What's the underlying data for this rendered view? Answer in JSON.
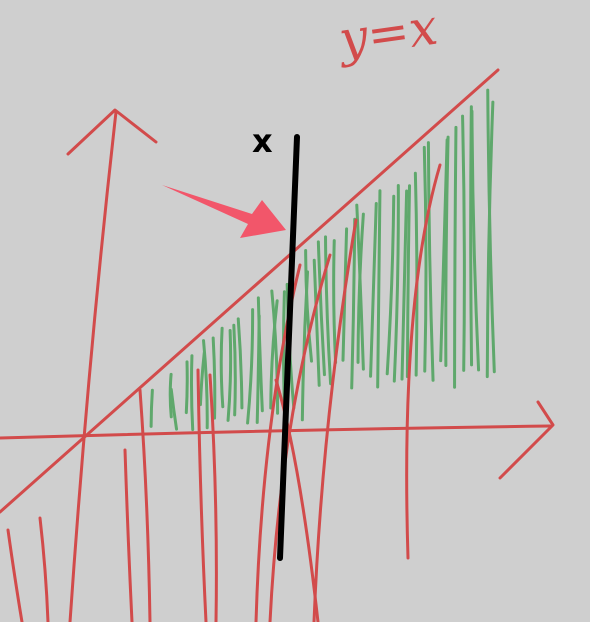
{
  "labels": {
    "curve": "y=x",
    "marker": "x"
  }
}
